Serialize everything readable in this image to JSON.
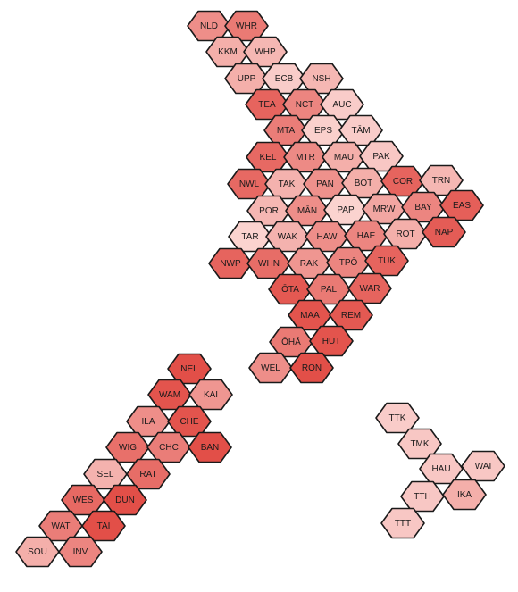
{
  "map": {
    "color_scale": {
      "low": "#fde0dd",
      "high": "#de3b34"
    },
    "regions": [
      {
        "code": "NLD",
        "level": 0.5
      },
      {
        "code": "WHR",
        "level": 0.62
      },
      {
        "code": "KKM",
        "level": 0.3
      },
      {
        "code": "WHP",
        "level": 0.25
      },
      {
        "code": "UPP",
        "level": 0.3
      },
      {
        "code": "ECB",
        "level": 0.12
      },
      {
        "code": "NSH",
        "level": 0.25
      },
      {
        "code": "TEA",
        "level": 0.75
      },
      {
        "code": "NCT",
        "level": 0.55
      },
      {
        "code": "AUC",
        "level": 0.12
      },
      {
        "code": "MTA",
        "level": 0.6
      },
      {
        "code": "EPS",
        "level": 0.1
      },
      {
        "code": "TĀM",
        "level": 0.12
      },
      {
        "code": "KEL",
        "level": 0.72
      },
      {
        "code": "MTR",
        "level": 0.52
      },
      {
        "code": "MAU",
        "level": 0.3
      },
      {
        "code": "PAK",
        "level": 0.15
      },
      {
        "code": "NWL",
        "level": 0.72
      },
      {
        "code": "TAK",
        "level": 0.28
      },
      {
        "code": "PAN",
        "level": 0.48
      },
      {
        "code": "BOT",
        "level": 0.3
      },
      {
        "code": "COR",
        "level": 0.75
      },
      {
        "code": "TRN",
        "level": 0.25
      },
      {
        "code": "POR",
        "level": 0.25
      },
      {
        "code": "MĀN",
        "level": 0.5
      },
      {
        "code": "PAP",
        "level": 0.08
      },
      {
        "code": "MRW",
        "level": 0.35
      },
      {
        "code": "BAY",
        "level": 0.55
      },
      {
        "code": "EAS",
        "level": 0.78
      },
      {
        "code": "TAR",
        "level": 0.08
      },
      {
        "code": "WAK",
        "level": 0.28
      },
      {
        "code": "HAW",
        "level": 0.5
      },
      {
        "code": "HAE",
        "level": 0.55
      },
      {
        "code": "ROT",
        "level": 0.3
      },
      {
        "code": "NAP",
        "level": 0.8
      },
      {
        "code": "NWP",
        "level": 0.75
      },
      {
        "code": "WHN",
        "level": 0.7
      },
      {
        "code": "RAK",
        "level": 0.45
      },
      {
        "code": "TPŌ",
        "level": 0.55
      },
      {
        "code": "TUK",
        "level": 0.75
      },
      {
        "code": "ŌTA",
        "level": 0.82
      },
      {
        "code": "PAL",
        "level": 0.62
      },
      {
        "code": "WAR",
        "level": 0.75
      },
      {
        "code": "MAA",
        "level": 0.85
      },
      {
        "code": "REM",
        "level": 0.82
      },
      {
        "code": "ŌHĀ",
        "level": 0.62
      },
      {
        "code": "HUT",
        "level": 0.85
      },
      {
        "code": "WEL",
        "level": 0.5
      },
      {
        "code": "RON",
        "level": 0.88
      },
      {
        "code": "NEL",
        "level": 0.88
      },
      {
        "code": "WAM",
        "level": 0.85
      },
      {
        "code": "KAI",
        "level": 0.45
      },
      {
        "code": "ILA",
        "level": 0.5
      },
      {
        "code": "CHE",
        "level": 0.85
      },
      {
        "code": "WIG",
        "level": 0.68
      },
      {
        "code": "CHC",
        "level": 0.6
      },
      {
        "code": "BAN",
        "level": 0.88
      },
      {
        "code": "SEL",
        "level": 0.28
      },
      {
        "code": "RAT",
        "level": 0.7
      },
      {
        "code": "WES",
        "level": 0.72
      },
      {
        "code": "DUN",
        "level": 0.88
      },
      {
        "code": "WAT",
        "level": 0.6
      },
      {
        "code": "TAI",
        "level": 0.88
      },
      {
        "code": "SOU",
        "level": 0.3
      },
      {
        "code": "INV",
        "level": 0.55
      },
      {
        "code": "TTK",
        "level": 0.12
      },
      {
        "code": "TMK",
        "level": 0.15
      },
      {
        "code": "HAU",
        "level": 0.15
      },
      {
        "code": "WAI",
        "level": 0.15
      },
      {
        "code": "TTH",
        "level": 0.15
      },
      {
        "code": "IKA",
        "level": 0.3
      },
      {
        "code": "TTT",
        "level": 0.15
      }
    ]
  }
}
